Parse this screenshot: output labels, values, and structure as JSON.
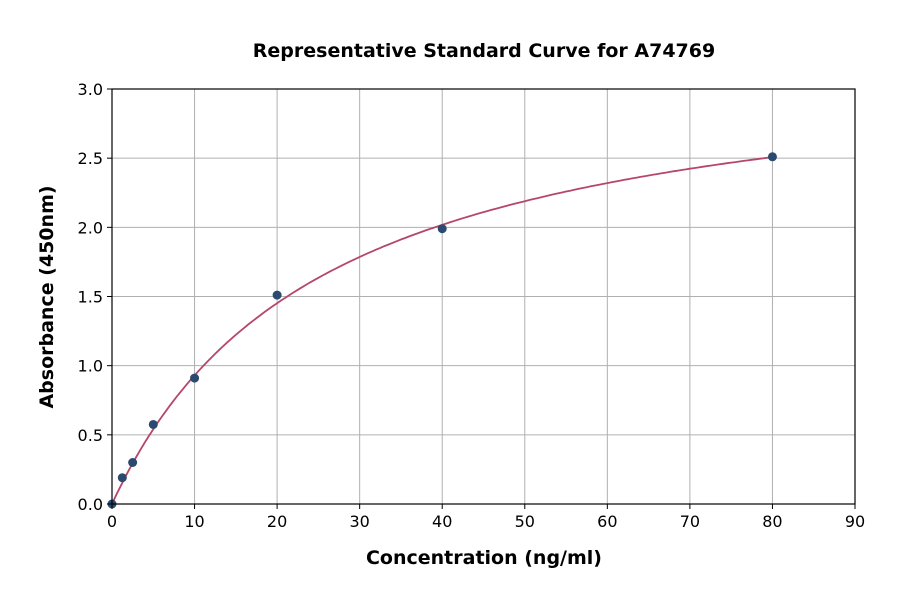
{
  "chart_data": {
    "type": "scatter",
    "title": "Representative Standard Curve for A74769",
    "xlabel": "Concentration (ng/ml)",
    "ylabel": "Absorbance (450nm)",
    "xlim": [
      0,
      90
    ],
    "ylim": [
      0,
      3.0
    ],
    "xticks": [
      "0",
      "10",
      "20",
      "30",
      "40",
      "50",
      "60",
      "70",
      "80",
      "90"
    ],
    "yticks": [
      "0.0",
      "0.5",
      "1.0",
      "1.5",
      "2.0",
      "2.5",
      "3.0"
    ],
    "grid": true,
    "points": [
      {
        "x": 0,
        "y": 0.0
      },
      {
        "x": 1.25,
        "y": 0.19
      },
      {
        "x": 2.5,
        "y": 0.3
      },
      {
        "x": 5,
        "y": 0.575
      },
      {
        "x": 10,
        "y": 0.91
      },
      {
        "x": 20,
        "y": 1.51
      },
      {
        "x": 40,
        "y": 1.99
      },
      {
        "x": 80,
        "y": 2.51
      }
    ],
    "fit_curve": "smooth saturating fit through points",
    "colors": {
      "points": "#2b4a6f",
      "curve": "#b5476a",
      "grid": "#b0b0b0"
    }
  }
}
